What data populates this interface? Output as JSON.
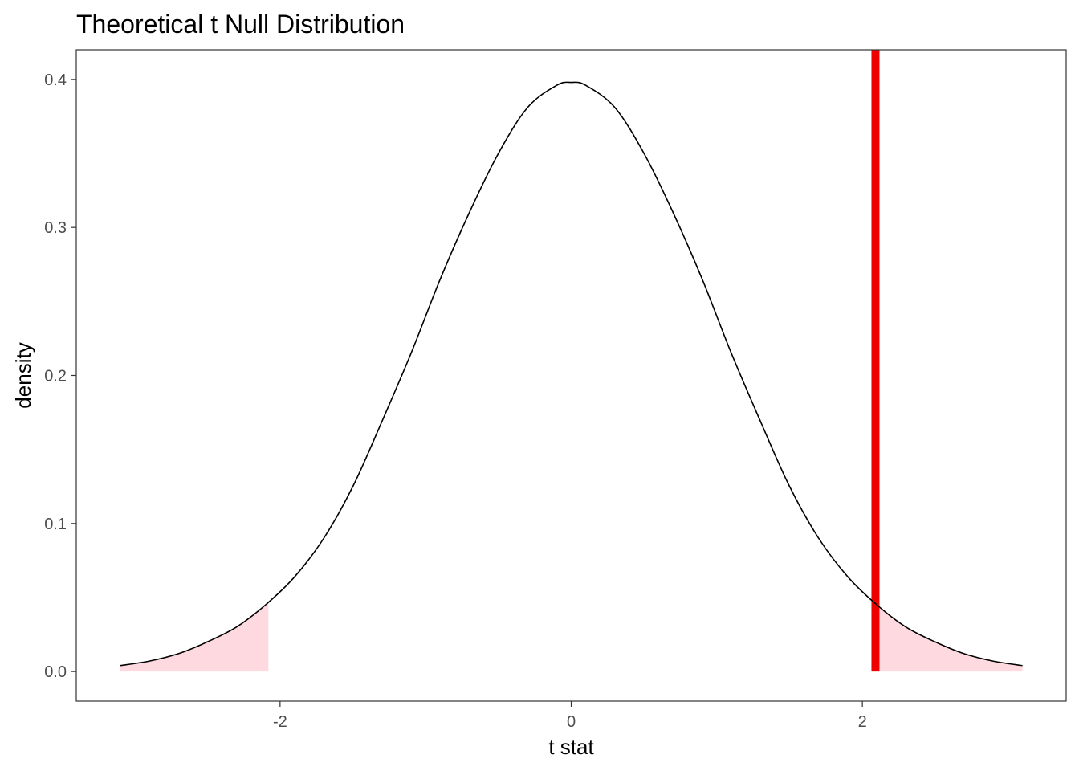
{
  "chart_data": {
    "type": "line",
    "title": "Theoretical t Null Distribution",
    "xlabel": "t stat",
    "ylabel": "density",
    "xlim": [
      -3.4,
      3.4
    ],
    "ylim": [
      -0.02,
      0.42
    ],
    "x_ticks": [
      {
        "value": -2,
        "label": "-2"
      },
      {
        "value": 0,
        "label": "0"
      },
      {
        "value": 2,
        "label": "2"
      }
    ],
    "y_ticks": [
      {
        "value": 0.0,
        "label": "0.0"
      },
      {
        "value": 0.1,
        "label": "0.1"
      },
      {
        "value": 0.2,
        "label": "0.2"
      },
      {
        "value": 0.3,
        "label": "0.3"
      },
      {
        "value": 0.4,
        "label": "0.4"
      }
    ],
    "series": [
      {
        "x": [
          -3.1,
          -2.9,
          -2.7,
          -2.5,
          -2.3,
          -2.1,
          -1.9,
          -1.7,
          -1.5,
          -1.3,
          -1.1,
          -0.9,
          -0.7,
          -0.5,
          -0.3,
          -0.1,
          0.0,
          0.1,
          0.3,
          0.5,
          0.7,
          0.9,
          1.1,
          1.3,
          1.5,
          1.7,
          1.9,
          2.1,
          2.3,
          2.5,
          2.7,
          2.9,
          3.1
        ],
        "values": [
          0.004,
          0.007,
          0.012,
          0.02,
          0.03,
          0.045,
          0.064,
          0.09,
          0.125,
          0.169,
          0.215,
          0.265,
          0.31,
          0.35,
          0.381,
          0.396,
          0.398,
          0.396,
          0.381,
          0.35,
          0.31,
          0.265,
          0.215,
          0.169,
          0.125,
          0.09,
          0.064,
          0.045,
          0.03,
          0.02,
          0.012,
          0.007,
          0.004
        ],
        "color": "#000000"
      }
    ],
    "shaded_regions": [
      {
        "from": -3.1,
        "to": -2.08,
        "color": "#ffd9e0"
      },
      {
        "from": 2.08,
        "to": 3.1,
        "color": "#ffd9e0"
      }
    ],
    "reference_line": {
      "x": 2.09,
      "color": "#ee0000"
    },
    "grid": false
  }
}
